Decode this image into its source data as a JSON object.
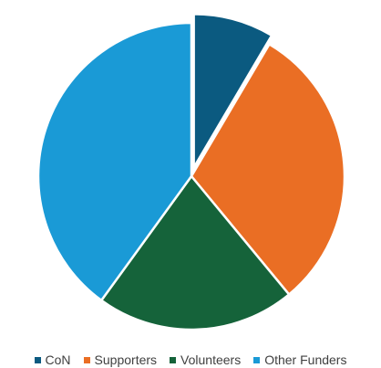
{
  "chart_data": {
    "type": "pie",
    "title": "",
    "categories": [
      "CoN",
      "Supporters",
      "Volunteers",
      "Other Funders"
    ],
    "values": [
      8.5,
      30.5,
      21.0,
      40.0
    ],
    "colors": [
      "#0b5a80",
      "#ea6e24",
      "#15633a",
      "#1a9ad6"
    ],
    "exploded": [
      true,
      false,
      false,
      false
    ],
    "legend_position": "bottom"
  }
}
